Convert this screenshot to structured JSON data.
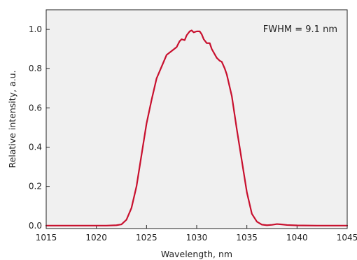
{
  "chart_data": {
    "type": "line",
    "title": "",
    "xlabel": "Wavelength, nm",
    "ylabel": "Relative intensity, a.u.",
    "xlim": [
      1015,
      1045
    ],
    "ylim": [
      -0.015,
      1.1
    ],
    "x_ticks": [
      1015,
      1020,
      1025,
      1030,
      1035,
      1040,
      1045
    ],
    "y_ticks": [
      0.0,
      0.2,
      0.4,
      0.6,
      0.8,
      1.0
    ],
    "x_tick_labels": [
      "1015",
      "1020",
      "1025",
      "1030",
      "1035",
      "1040",
      "1045"
    ],
    "y_tick_labels": [
      "0.0",
      "0.2",
      "0.4",
      "0.6",
      "0.8",
      "1.0"
    ],
    "grid": false,
    "background_color": "#f0f0f0",
    "annotation": "FWHM = 9.1 nm",
    "series": [
      {
        "color": "#c8102e",
        "x": [
          1015,
          1018,
          1020,
          1021,
          1022,
          1022.5,
          1023,
          1023.5,
          1024,
          1024.5,
          1025,
          1025.5,
          1026,
          1026.5,
          1027,
          1027.5,
          1028,
          1028.3,
          1028.5,
          1028.8,
          1029,
          1029.3,
          1029.5,
          1029.7,
          1030,
          1030.3,
          1030.5,
          1030.7,
          1031,
          1031.3,
          1031.5,
          1032,
          1032.3,
          1032.5,
          1032.8,
          1033,
          1033.5,
          1034,
          1034.5,
          1035,
          1035.5,
          1036,
          1036.5,
          1037,
          1037.5,
          1038,
          1038.5,
          1039,
          1040,
          1042,
          1045
        ],
        "values": [
          0.0,
          0.0,
          0.0,
          0.0,
          0.002,
          0.006,
          0.03,
          0.09,
          0.2,
          0.36,
          0.52,
          0.64,
          0.75,
          0.81,
          0.87,
          0.89,
          0.91,
          0.94,
          0.95,
          0.945,
          0.97,
          0.99,
          0.995,
          0.985,
          0.99,
          0.99,
          0.975,
          0.95,
          0.93,
          0.93,
          0.9,
          0.855,
          0.84,
          0.835,
          0.8,
          0.77,
          0.66,
          0.49,
          0.33,
          0.17,
          0.06,
          0.02,
          0.005,
          0.002,
          0.004,
          0.008,
          0.006,
          0.003,
          0.001,
          0.0,
          0.0
        ]
      }
    ]
  }
}
